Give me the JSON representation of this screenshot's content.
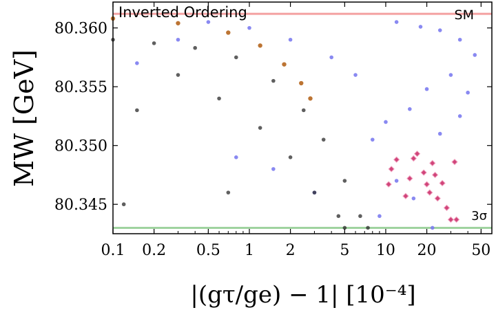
{
  "chart_data": {
    "type": "scatter",
    "title": "Inverted Ordering",
    "xlabel": "|(gτ/ge) − 1| [10⁻⁴]",
    "ylabel": "MW [GeV]",
    "x_scale": "log",
    "xlim": [
      0.1,
      60
    ],
    "ylim": [
      80.3425,
      80.3622
    ],
    "x_ticks": [
      0.1,
      0.2,
      0.5,
      1,
      2,
      5,
      10,
      20,
      50
    ],
    "x_tick_labels": [
      "0.1",
      "0.2",
      "0.5",
      "1",
      "2",
      "5",
      "10",
      "20",
      "50"
    ],
    "y_ticks": [
      80.345,
      80.35,
      80.355,
      80.36
    ],
    "y_tick_labels": [
      "80.345",
      "80.350",
      "80.355",
      "80.360"
    ],
    "grid": false,
    "reference_lines": [
      {
        "label": "SM",
        "y": 80.3612,
        "color": "#f4a0a0"
      },
      {
        "label": "3σ",
        "y": 80.343,
        "color": "#9fd39f"
      }
    ],
    "series": [
      {
        "color": "#7c7cf0",
        "description_points": "blue scatter above the boundary",
        "points": [
          [
            12,
            80.3605
          ],
          [
            18,
            80.3601
          ],
          [
            25,
            80.3598
          ],
          [
            35,
            80.359
          ],
          [
            45,
            80.3577
          ],
          [
            30,
            80.356
          ],
          [
            20,
            80.3548
          ],
          [
            15,
            80.3531
          ],
          [
            40,
            80.3545
          ],
          [
            10,
            80.352
          ],
          [
            8,
            80.3505
          ],
          [
            25,
            80.351
          ],
          [
            35,
            80.3525
          ],
          [
            6,
            80.356
          ],
          [
            4,
            80.3575
          ],
          [
            2,
            80.359
          ],
          [
            1,
            80.36
          ],
          [
            0.5,
            80.3605
          ],
          [
            0.3,
            80.359
          ],
          [
            0.15,
            80.357
          ],
          [
            1.5,
            80.348
          ],
          [
            3,
            80.346
          ],
          [
            0.8,
            80.349
          ],
          [
            12,
            80.347
          ],
          [
            9,
            80.344
          ],
          [
            16,
            80.3455
          ],
          [
            22,
            80.343
          ]
        ]
      },
      {
        "color": "#2a2a2a",
        "description_points": "black band below the boundary",
        "points": [
          [
            0.1,
            80.359
          ],
          [
            0.2,
            80.3587
          ],
          [
            0.4,
            80.3583
          ],
          [
            0.8,
            80.3575
          ],
          [
            1.5,
            80.3555
          ],
          [
            2.5,
            80.353
          ],
          [
            3.5,
            80.3505
          ],
          [
            5,
            80.347
          ],
          [
            6.5,
            80.344
          ],
          [
            7.4,
            80.343
          ],
          [
            0.3,
            80.356
          ],
          [
            0.6,
            80.354
          ],
          [
            1.2,
            80.3515
          ],
          [
            2,
            80.349
          ],
          [
            3,
            80.346
          ],
          [
            4.5,
            80.344
          ],
          [
            0.7,
            80.346
          ],
          [
            0.15,
            80.353
          ],
          [
            0.12,
            80.345
          ],
          [
            5,
            80.343
          ]
        ]
      },
      {
        "color": "#b5651d",
        "description_points": "brown curve",
        "points": [
          [
            0.1,
            80.3608
          ],
          [
            0.3,
            80.3604
          ],
          [
            0.7,
            80.3596
          ],
          [
            1.2,
            80.3585
          ],
          [
            1.8,
            80.3569
          ],
          [
            2.4,
            80.3553
          ],
          [
            2.8,
            80.354
          ]
        ]
      },
      {
        "color": "#d0457a",
        "description_points": "pink diamonds",
        "points": [
          [
            10.5,
            80.3467
          ],
          [
            11,
            80.348
          ],
          [
            12,
            80.3488
          ],
          [
            14,
            80.3457
          ],
          [
            15,
            80.3472
          ],
          [
            16,
            80.3489
          ],
          [
            17,
            80.3493
          ],
          [
            19,
            80.3477
          ],
          [
            20,
            80.3467
          ],
          [
            21,
            80.346
          ],
          [
            22,
            80.3485
          ],
          [
            23,
            80.3475
          ],
          [
            24,
            80.3455
          ],
          [
            26,
            80.3468
          ],
          [
            28,
            80.3447
          ],
          [
            30,
            80.3437
          ],
          [
            32,
            80.3486
          ],
          [
            33,
            80.3437
          ]
        ]
      }
    ]
  }
}
